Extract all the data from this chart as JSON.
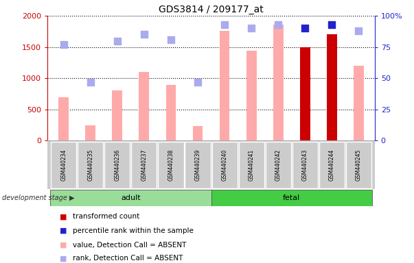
{
  "title": "GDS3814 / 209177_at",
  "samples": [
    "GSM440234",
    "GSM440235",
    "GSM440236",
    "GSM440237",
    "GSM440238",
    "GSM440239",
    "GSM440240",
    "GSM440241",
    "GSM440242",
    "GSM440243",
    "GSM440244",
    "GSM440245"
  ],
  "bar_values": [
    700,
    250,
    810,
    1100,
    890,
    240,
    1760,
    1440,
    1860,
    1500,
    1700,
    1200
  ],
  "bar_colors": [
    "#ffaaaa",
    "#ffaaaa",
    "#ffaaaa",
    "#ffaaaa",
    "#ffaaaa",
    "#ffaaaa",
    "#ffaaaa",
    "#ffaaaa",
    "#ffaaaa",
    "#cc0000",
    "#cc0000",
    "#ffaaaa"
  ],
  "rank_values": [
    77,
    47,
    80,
    85,
    81,
    47,
    93,
    90,
    93,
    90,
    93,
    88
  ],
  "rank_colors": [
    "#aaaaee",
    "#aaaaee",
    "#aaaaee",
    "#aaaaee",
    "#aaaaee",
    "#aaaaee",
    "#aaaaee",
    "#aaaaee",
    "#aaaaee",
    "#2222cc",
    "#2222cc",
    "#aaaaee"
  ],
  "groups": [
    {
      "label": "adult",
      "start": 0,
      "end": 5,
      "color": "#99dd99"
    },
    {
      "label": "fetal",
      "start": 6,
      "end": 11,
      "color": "#44cc44"
    }
  ],
  "ylim_left": [
    0,
    2000
  ],
  "ylim_right": [
    0,
    100
  ],
  "yticks_left": [
    0,
    500,
    1000,
    1500,
    2000
  ],
  "ytick_labels_left": [
    "0",
    "500",
    "1000",
    "1500",
    "2000"
  ],
  "yticks_right": [
    0,
    25,
    50,
    75,
    100
  ],
  "ytick_labels_right": [
    "0",
    "25",
    "50",
    "75",
    "100%"
  ],
  "left_axis_color": "#cc0000",
  "right_axis_color": "#2222cc",
  "group_label": "development stage",
  "legend_items": [
    {
      "label": "transformed count",
      "color": "#cc0000"
    },
    {
      "label": "percentile rank within the sample",
      "color": "#2222cc"
    },
    {
      "label": "value, Detection Call = ABSENT",
      "color": "#ffaaaa"
    },
    {
      "label": "rank, Detection Call = ABSENT",
      "color": "#aaaaee"
    }
  ],
  "bar_width": 0.38,
  "rank_marker_size": 48,
  "background_color": "#ffffff"
}
